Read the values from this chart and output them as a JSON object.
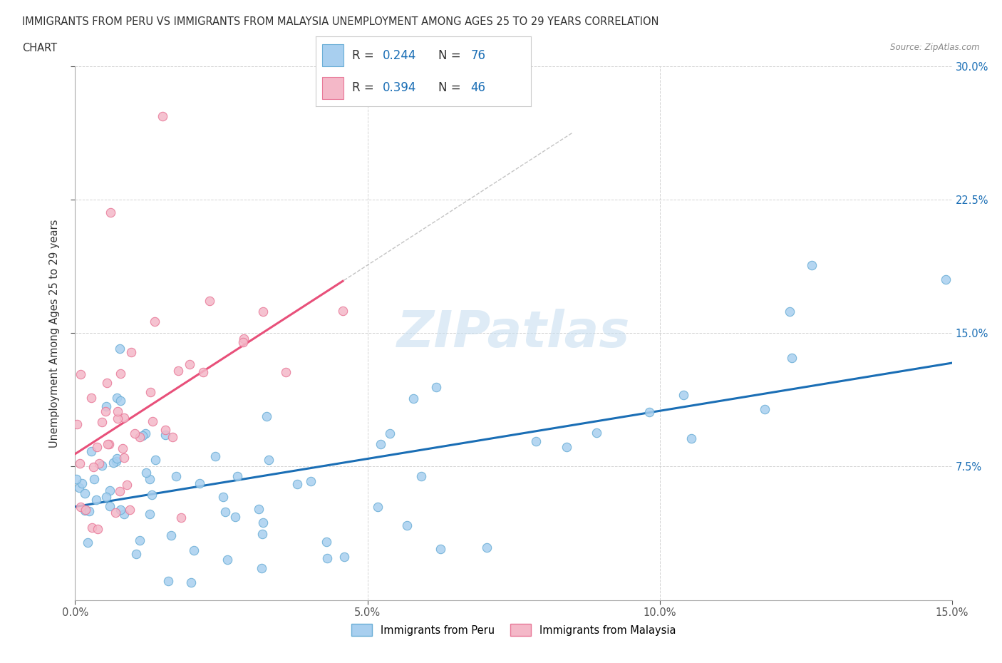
{
  "title_line1": "IMMIGRANTS FROM PERU VS IMMIGRANTS FROM MALAYSIA UNEMPLOYMENT AMONG AGES 25 TO 29 YEARS CORRELATION",
  "title_line2": "CHART",
  "source_text": "Source: ZipAtlas.com",
  "ylabel": "Unemployment Among Ages 25 to 29 years",
  "xlim": [
    0.0,
    0.15
  ],
  "ylim": [
    0.0,
    0.3
  ],
  "xtick_labels": [
    "0.0%",
    "5.0%",
    "10.0%",
    "15.0%"
  ],
  "xtick_values": [
    0.0,
    0.05,
    0.1,
    0.15
  ],
  "ytick_labels": [
    "7.5%",
    "15.0%",
    "22.5%",
    "30.0%"
  ],
  "ytick_values": [
    0.075,
    0.15,
    0.225,
    0.3
  ],
  "peru_color": "#A8CFEF",
  "peru_edge_color": "#6aaed6",
  "malaysia_color": "#F4B8C8",
  "malaysia_edge_color": "#e87898",
  "trend_peru_color": "#1a6eb5",
  "trend_malaysia_color": "#e8507a",
  "watermark_color": "#c8dff0",
  "legend_peru_label": "Immigrants from Peru",
  "legend_malaysia_label": "Immigrants from Malaysia",
  "background_color": "#FFFFFF",
  "grid_color": "#C8C8C8",
  "legend_text_color": "#1a6eb5",
  "peru_seed": 42,
  "malaysia_seed": 7
}
